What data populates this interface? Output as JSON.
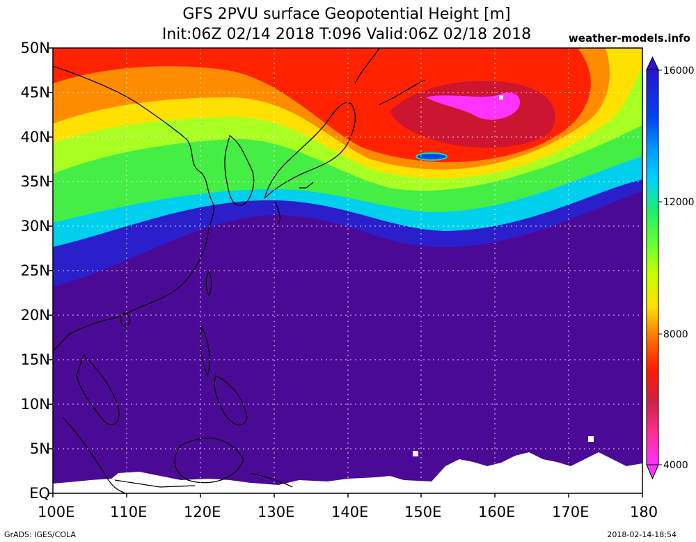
{
  "header": {
    "title": "GFS 2PVU surface Geopotential Height [m]",
    "subtitle": "Init:06Z 02/14 2018 T:096 Valid:06Z 02/18 2018",
    "credit": "weather-models.info"
  },
  "map": {
    "lat_labels": [
      "50N",
      "45N",
      "40N",
      "35N",
      "30N",
      "25N",
      "20N",
      "15N",
      "10N",
      "5N",
      "EQ"
    ],
    "lon_labels": [
      "100E",
      "110E",
      "120E",
      "130E",
      "140E",
      "150E",
      "160E",
      "170E",
      "180"
    ],
    "extent": {
      "lon": [
        100,
        180
      ],
      "lat": [
        0,
        50
      ]
    }
  },
  "colorbar": {
    "labels": [
      "16000",
      "12000",
      "8000",
      "4000"
    ],
    "range": [
      4000,
      16000
    ],
    "colors": [
      "#ff33ff",
      "#ff2f92",
      "#cc2244",
      "#ff1a00",
      "#ff5a00",
      "#ff8c00",
      "#ffb000",
      "#ffe000",
      "#c8ff00",
      "#66ff33",
      "#22ee66",
      "#00e6b0",
      "#00d4ff",
      "#0099ff",
      "#0044ee",
      "#2a14cc",
      "#3d0aa8",
      "#4b0a96"
    ]
  },
  "footer": {
    "left": "GrADS: IGES/COLA",
    "right": "2018-02-14-18:54"
  }
}
